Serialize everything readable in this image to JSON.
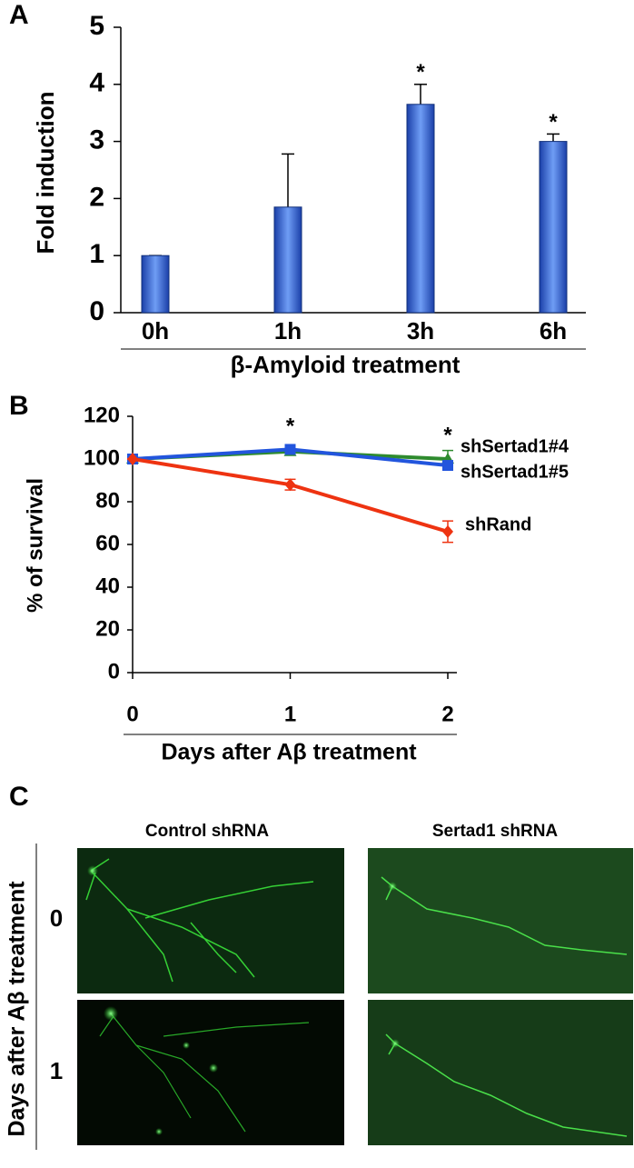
{
  "chart_data": [
    {
      "type": "bar",
      "label": "A",
      "ylabel": "Fold induction",
      "xlabel": "β-Amyloid treatment",
      "categories": [
        "0h",
        "1h",
        "3h",
        "6h"
      ],
      "values": [
        1,
        1.85,
        3.65,
        3.0
      ],
      "errors": [
        0,
        0.93,
        0.35,
        0.13
      ],
      "annotations": [
        null,
        null,
        "*",
        "*"
      ],
      "color": "#3a68d8",
      "ylim": [
        0,
        5
      ],
      "yticks": [
        0,
        1,
        2,
        3,
        4,
        5
      ]
    },
    {
      "type": "line",
      "label": "B",
      "ylabel": "% of survival",
      "xlabel": "Days after Aβ treatment",
      "x": [
        0,
        1,
        2
      ],
      "annotations": [
        null,
        "*",
        "*"
      ],
      "series": [
        {
          "name": "shSertad1#4",
          "color": "#2e8b2e",
          "marker": "triangle",
          "values": [
            100,
            103.5,
            100
          ],
          "errors": [
            0,
            1,
            4
          ]
        },
        {
          "name": "shSertad1#5",
          "color": "#2255dd",
          "marker": "square",
          "values": [
            100,
            104.5,
            97
          ],
          "errors": [
            0,
            1.5,
            1.5
          ]
        },
        {
          "name": "shRand",
          "color": "#ee3311",
          "marker": "diamond",
          "values": [
            100,
            88,
            66
          ],
          "errors": [
            0,
            2.5,
            5
          ]
        }
      ],
      "xlim": [
        0,
        2
      ],
      "xticks": [
        0,
        1,
        2
      ],
      "ylim": [
        0,
        120
      ],
      "yticks": [
        0,
        20,
        40,
        60,
        80,
        100,
        120
      ]
    }
  ],
  "panel_c": {
    "label": "C",
    "columns": [
      "Control shRNA",
      "Sertad1 shRNA"
    ],
    "rows": [
      "0",
      "1"
    ],
    "ylabel": "Days after Aβ treatment"
  }
}
